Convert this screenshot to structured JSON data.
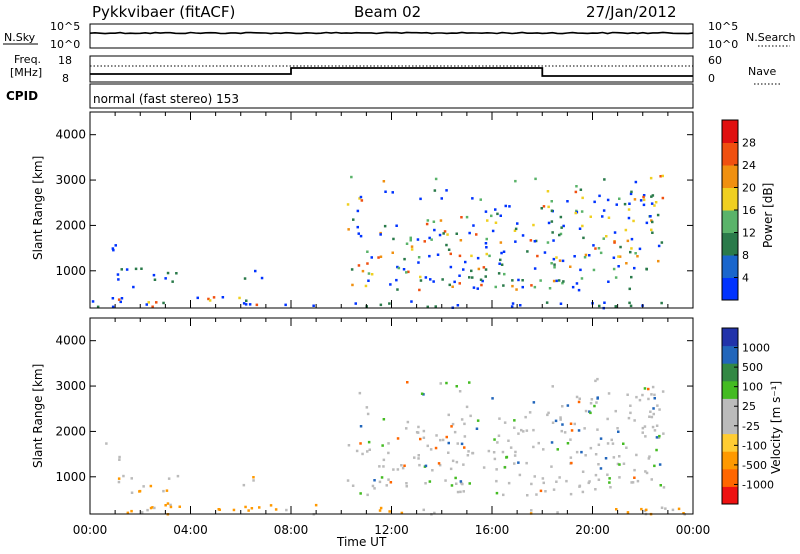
{
  "header": {
    "station": "Pykkvibaer (fitACF)",
    "beam": "Beam 02",
    "date": "27/Jan/2012"
  },
  "nsky_panel": {
    "left_label": "N.Sky",
    "left_ticks": [
      "10^5",
      "10^0"
    ],
    "right_ticks": [
      "10^5",
      "10^0"
    ],
    "right_label": "N.Search"
  },
  "freq_panel": {
    "left_label_1": "Freq.",
    "left_label_2": "[MHz]",
    "left_ticks": [
      "18",
      "8"
    ],
    "right_ticks": [
      "60",
      "0"
    ],
    "right_label": "Nave"
  },
  "cpid": {
    "label": "CPID",
    "text": "normal (fast stereo) 153"
  },
  "colors": {
    "power": [
      "#0033ff",
      "#1a66cc",
      "#2a7a4a",
      "#5ab36a",
      "#f0d020",
      "#f09010",
      "#f05010",
      "#e01010"
    ],
    "velocity": [
      "#ee1111",
      "#ff6600",
      "#ff9900",
      "#ffcc33",
      "#bbbbbb",
      "#bbbbbb",
      "#44bb22",
      "#338844",
      "#2266bb",
      "#2233aa"
    ],
    "ground": "#bbbbbb"
  },
  "chart_data": [
    {
      "type": "heatmap",
      "name": "power",
      "ylabel": "Slant Range [km]",
      "yticks": [
        "4000",
        "3000",
        "2000",
        "1000"
      ],
      "ylim": [
        180,
        4500
      ],
      "xlim_hours": [
        0,
        24
      ],
      "colorbar_label": "Power [dB]",
      "colorbar_ticks": [
        "28",
        "24",
        "20",
        "16",
        "12",
        "8",
        "4"
      ],
      "colorbar_range": [
        0,
        32
      ],
      "scatter_regions": [
        {
          "t0": 0.0,
          "t1": 9.0,
          "r0": 200,
          "r1": 450,
          "level": "mixed"
        },
        {
          "t0": 0.6,
          "t1": 1.2,
          "r0": 1300,
          "r1": 1800,
          "level": "low"
        },
        {
          "t0": 1.0,
          "t1": 3.5,
          "r0": 650,
          "r1": 1100,
          "level": "low"
        },
        {
          "t0": 6.0,
          "t1": 7.0,
          "r0": 800,
          "r1": 1050,
          "level": "low"
        },
        {
          "t0": 10.2,
          "t1": 22.8,
          "r0": 600,
          "r1": 3200,
          "level": "high"
        },
        {
          "t0": 10.0,
          "t1": 24.0,
          "r0": 200,
          "r1": 350,
          "level": "low"
        }
      ]
    },
    {
      "type": "heatmap",
      "name": "velocity",
      "ylabel": "Slant Range [km]",
      "yticks": [
        "4000",
        "3000",
        "2000",
        "1000"
      ],
      "ylim": [
        180,
        4500
      ],
      "xlim_hours": [
        0,
        24
      ],
      "colorbar_label": "Velocity [m s⁻¹]",
      "colorbar_ticks": [
        "1000",
        "500",
        "100",
        "25",
        "-25",
        "-100",
        "-500",
        "-1000"
      ],
      "x_ticks": [
        "00:00",
        "04:00",
        "08:00",
        "12:00",
        "16:00",
        "20:00",
        "00:00"
      ],
      "xlabel": "Time UT"
    }
  ]
}
